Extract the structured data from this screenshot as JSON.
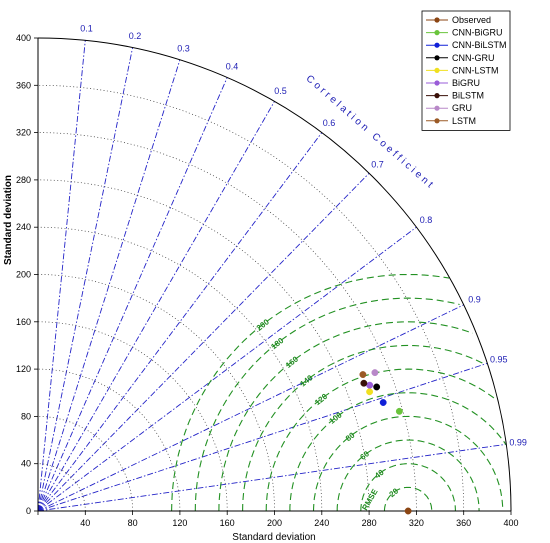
{
  "chart_data": {
    "type": "scatter",
    "subtype": "taylor-diagram",
    "xlabel": "Standard deviation",
    "ylabel": "Standard deviation",
    "xlim": [
      0,
      400
    ],
    "ylim": [
      0,
      400
    ],
    "std_ticks": [
      0,
      40,
      80,
      120,
      160,
      200,
      240,
      280,
      320,
      360,
      400
    ],
    "correlation_title": "Correlation Coefficient",
    "correlation_ticks": [
      0.1,
      0.2,
      0.3,
      0.4,
      0.5,
      0.6,
      0.7,
      0.8,
      0.9,
      0.95,
      0.99
    ],
    "rms_label": "RMSE",
    "rms_ticks": [
      20,
      40,
      60,
      80,
      100,
      120,
      140,
      160,
      180,
      200
    ],
    "legend_position": "top-right",
    "series": [
      {
        "name": "Observed",
        "color": "#8b4513",
        "std": 313,
        "corr": 1.0
      },
      {
        "name": "CNN-BiGRU",
        "color": "#6ac43c",
        "std": 317,
        "corr": 0.964
      },
      {
        "name": "CNN-BiLSTM",
        "color": "#1020d8",
        "std": 306,
        "corr": 0.954
      },
      {
        "name": "CNN-GRU",
        "color": "#000000",
        "std": 305,
        "corr": 0.939
      },
      {
        "name": "CNN-LSTM",
        "color": "#f0e020",
        "std": 298,
        "corr": 0.941
      },
      {
        "name": "BiGRU",
        "color": "#9a5cd8",
        "std": 300,
        "corr": 0.935
      },
      {
        "name": "BiLSTM",
        "color": "#3a1008",
        "std": 296,
        "corr": 0.931
      },
      {
        "name": "GRU",
        "color": "#b888c8",
        "std": 308,
        "corr": 0.925
      },
      {
        "name": "LSTM",
        "color": "#9b5a26",
        "std": 298,
        "corr": 0.922
      }
    ]
  }
}
